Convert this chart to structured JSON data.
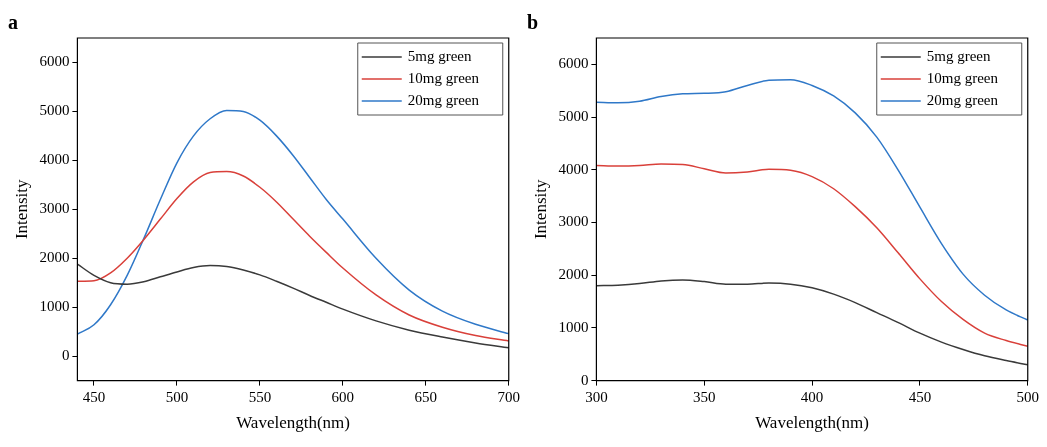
{
  "chart_data": [
    {
      "type": "line",
      "title": "a",
      "xlabel": "Wavelength(nm)",
      "ylabel": "Intensity",
      "x": [
        440,
        450,
        460,
        470,
        480,
        490,
        500,
        510,
        520,
        530,
        540,
        550,
        560,
        570,
        580,
        590,
        600,
        620,
        640,
        660,
        680,
        700
      ],
      "series": [
        {
          "name": "5mg green",
          "color": "#3a3a3a",
          "values": [
            1880,
            1650,
            1500,
            1470,
            1520,
            1620,
            1720,
            1810,
            1850,
            1830,
            1760,
            1660,
            1530,
            1390,
            1240,
            1100,
            960,
            720,
            530,
            390,
            270,
            170
          ]
        },
        {
          "name": "10mg green",
          "color": "#d9403a",
          "values": [
            1530,
            1540,
            1700,
            2000,
            2380,
            2800,
            3220,
            3560,
            3750,
            3770,
            3680,
            3450,
            3150,
            2800,
            2450,
            2120,
            1800,
            1250,
            840,
            590,
            420,
            310
          ]
        },
        {
          "name": "20mg green",
          "color": "#2f78c8",
          "values": [
            450,
            640,
            1050,
            1650,
            2400,
            3200,
            3950,
            4500,
            4850,
            5020,
            5000,
            4820,
            4500,
            4100,
            3650,
            3200,
            2800,
            2000,
            1350,
            920,
            650,
            460
          ]
        }
      ],
      "xlim": [
        440,
        700
      ],
      "xticks": [
        450,
        500,
        550,
        600,
        650,
        700
      ],
      "ylim": [
        -500,
        6500
      ],
      "yticks": [
        0,
        1000,
        2000,
        3000,
        4000,
        5000,
        6000
      ],
      "grid": false,
      "legend": "top right",
      "marker": "none",
      "line_style": "solid"
    },
    {
      "type": "line",
      "title": "b",
      "xlabel": "Wavelength(nm)",
      "ylabel": "Intensity",
      "x": [
        300,
        310,
        320,
        330,
        340,
        350,
        360,
        370,
        380,
        390,
        400,
        410,
        420,
        430,
        440,
        450,
        460,
        470,
        480,
        490,
        500
      ],
      "series": [
        {
          "name": "5mg green",
          "color": "#3a3a3a",
          "values": [
            1800,
            1810,
            1840,
            1890,
            1910,
            1880,
            1830,
            1830,
            1850,
            1830,
            1760,
            1640,
            1480,
            1290,
            1100,
            900,
            730,
            590,
            470,
            380,
            300
          ]
        },
        {
          "name": "10mg green",
          "color": "#d9403a",
          "values": [
            4080,
            4070,
            4080,
            4110,
            4100,
            4020,
            3940,
            3960,
            4010,
            3990,
            3870,
            3640,
            3300,
            2900,
            2420,
            1930,
            1500,
            1160,
            900,
            760,
            650
          ]
        },
        {
          "name": "20mg green",
          "color": "#2f78c8",
          "values": [
            5280,
            5270,
            5300,
            5390,
            5440,
            5450,
            5480,
            5600,
            5700,
            5710,
            5600,
            5400,
            5080,
            4620,
            3990,
            3290,
            2600,
            2020,
            1620,
            1340,
            1150
          ]
        }
      ],
      "xlim": [
        300,
        500
      ],
      "xticks": [
        300,
        350,
        400,
        450,
        500
      ],
      "ylim": [
        0,
        6500
      ],
      "yticks": [
        0,
        1000,
        2000,
        3000,
        4000,
        5000,
        6000
      ],
      "grid": false,
      "legend": "top right",
      "marker": "none",
      "line_style": "solid"
    }
  ]
}
